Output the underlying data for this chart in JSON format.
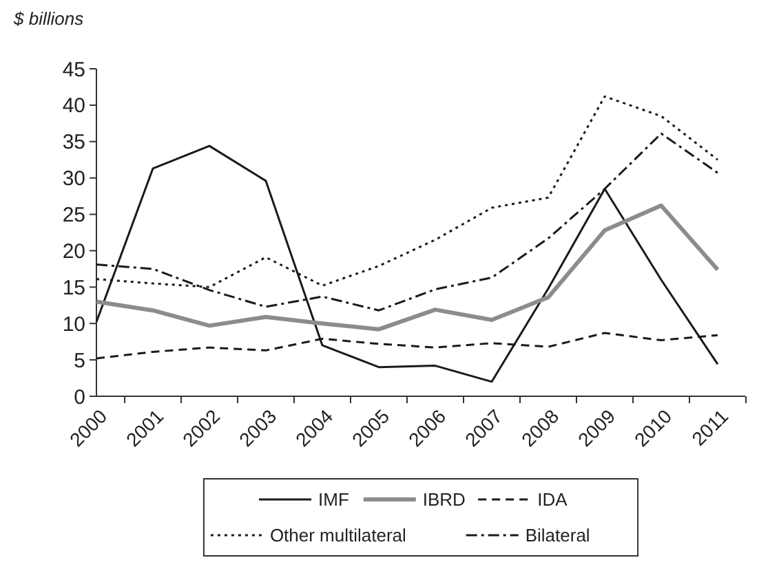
{
  "chart_data": {
    "type": "line",
    "ylabel": "$ billions",
    "categories": [
      "2000",
      "2001",
      "2002",
      "2003",
      "2004",
      "2005",
      "2006",
      "2007",
      "2008",
      "2009",
      "2010",
      "2011"
    ],
    "ylim": [
      0,
      45
    ],
    "yticks": [
      0,
      5,
      10,
      15,
      20,
      25,
      30,
      35,
      40,
      45
    ],
    "grid": false,
    "legend": "bottom",
    "marker": "none",
    "series": [
      {
        "name": "IMF",
        "color": "#1a1a1a",
        "line_style": "solid",
        "values": [
          10.2,
          31.3,
          34.4,
          29.6,
          7,
          4,
          4.2,
          2,
          14.8,
          28.5,
          16,
          4.4
        ]
      },
      {
        "name": "IBRD",
        "color": "#8c8c8c",
        "line_style": "solid",
        "values": [
          13,
          11.8,
          9.7,
          10.9,
          10,
          9.2,
          11.9,
          10.5,
          13.6,
          22.8,
          26.2,
          17.4
        ]
      },
      {
        "name": "IDA",
        "color": "#1a1a1a",
        "line_style": "dashed",
        "values": [
          5.2,
          6.1,
          6.7,
          6.3,
          7.9,
          7.2,
          6.7,
          7.3,
          6.8,
          8.7,
          7.7,
          8.4
        ]
      },
      {
        "name": "Other multilateral",
        "color": "#1a1a1a",
        "line_style": "dotted",
        "values": [
          16.1,
          15.5,
          15,
          19.1,
          15.2,
          17.9,
          21.5,
          25.9,
          27.3,
          41.2,
          38.5,
          32.5
        ]
      },
      {
        "name": "Bilateral",
        "color": "#1a1a1a",
        "line_style": "dashdot",
        "values": [
          18.1,
          17.5,
          14.6,
          12.3,
          13.7,
          11.8,
          14.7,
          16.3,
          21.7,
          28.5,
          36.1,
          30.7
        ]
      }
    ]
  }
}
